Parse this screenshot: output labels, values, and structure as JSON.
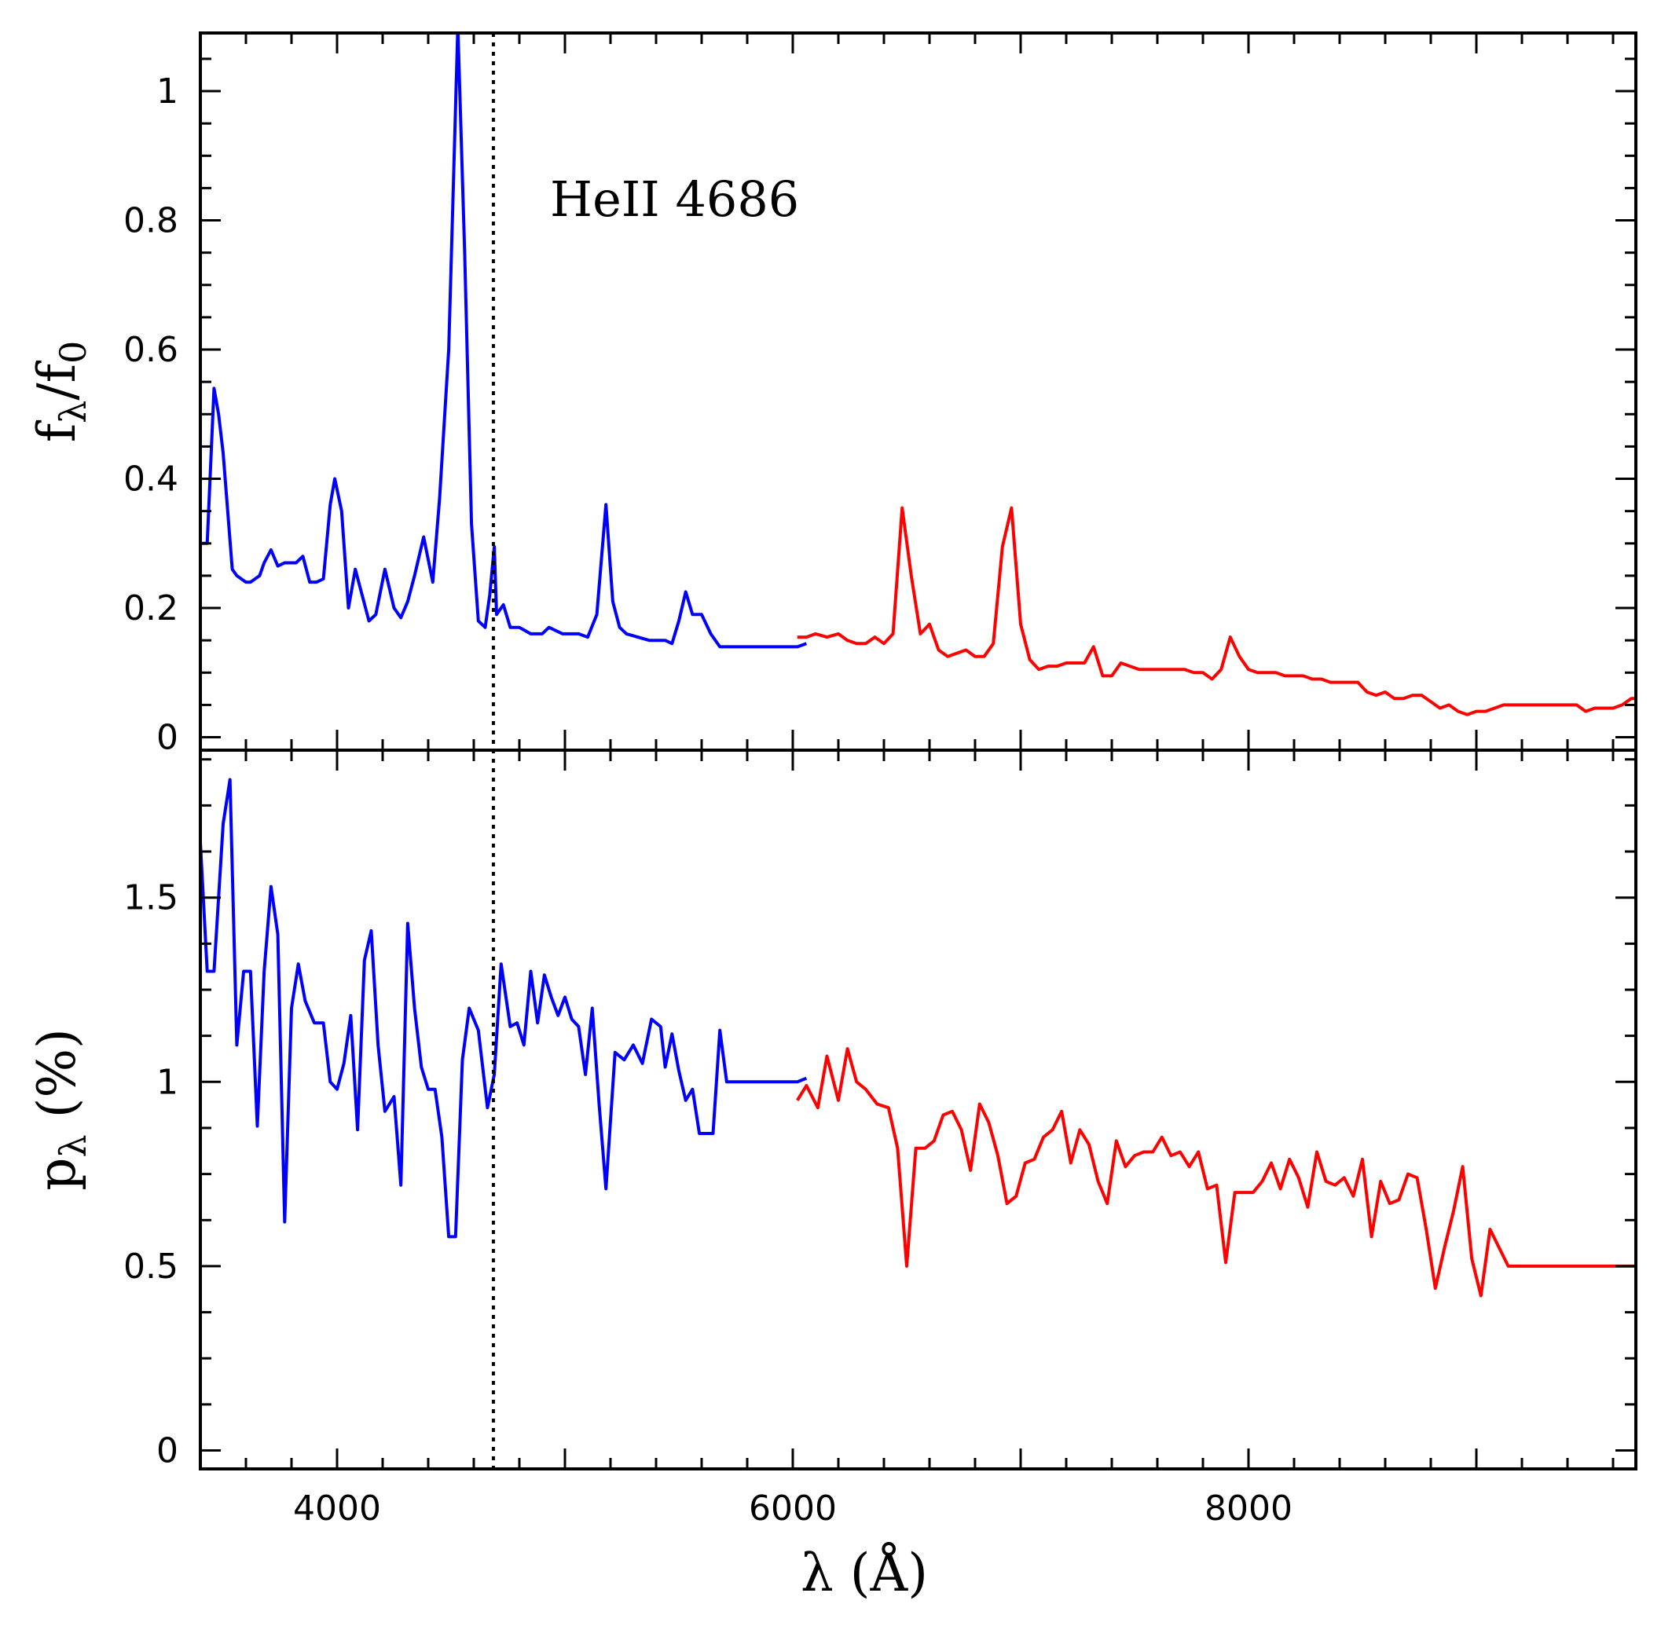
{
  "chart_data": {
    "type": "line",
    "xlabel": "λ (Å)",
    "xlim": [
      3400,
      9700
    ],
    "x_ticks": [
      4000,
      6000,
      8000
    ],
    "x_tick_labels": [
      "4000",
      "6000",
      "8000"
    ],
    "annotation": "HeII 4686",
    "marker_line": {
      "x": 4686
    },
    "panels": [
      {
        "name": "flux",
        "ylabel_main": "f",
        "ylabel_sub": "λ",
        "ylabel_rest": "/f",
        "ylabel_rest_sub": "0",
        "ylim": [
          -0.02,
          1.09
        ],
        "y_ticks": [
          0,
          0.2,
          0.4,
          0.6,
          0.8,
          1
        ],
        "y_tick_labels": [
          "0",
          "0.2",
          "0.4",
          "0.6",
          "0.8",
          "1"
        ],
        "series": [
          {
            "name": "blue",
            "color": "#0000ff",
            "x": [
              3400,
              3430,
              3460,
              3480,
              3500,
              3540,
              3560,
              3600,
              3620,
              3640,
              3660,
              3680,
              3710,
              3740,
              3770,
              3800,
              3820,
              3850,
              3880,
              3910,
              3940,
              3970,
              3990,
              4020,
              4050,
              4080,
              4110,
              4140,
              4170,
              4210,
              4250,
              4280,
              4310,
              4340,
              4380,
              4420,
              4450,
              4490,
              4530,
              4560,
              4590,
              4620,
              4650,
              4670,
              4690,
              4700,
              4730,
              4760,
              4800,
              4850,
              4880,
              4900,
              4930,
              4960,
              4990,
              5020,
              5060,
              5100,
              5140,
              5180,
              5210,
              5240,
              5270,
              5320,
              5370,
              5410,
              5440,
              5470,
              5500,
              5530,
              5560,
              5600,
              5640,
              5680,
              5720,
              5760,
              5800,
              5830,
              5860,
              5890,
              5940,
              5980,
              6020,
              6060
            ],
            "y": [
              0.3,
              0.3,
              0.54,
              0.5,
              0.44,
              0.26,
              0.25,
              0.24,
              0.24,
              0.245,
              0.25,
              0.27,
              0.29,
              0.265,
              0.27,
              0.27,
              0.27,
              0.28,
              0.24,
              0.24,
              0.245,
              0.36,
              0.4,
              0.35,
              0.2,
              0.26,
              0.22,
              0.18,
              0.19,
              0.26,
              0.2,
              0.185,
              0.21,
              0.25,
              0.31,
              0.24,
              0.37,
              0.6,
              1.1,
              0.75,
              0.33,
              0.18,
              0.17,
              0.22,
              0.295,
              0.19,
              0.205,
              0.17,
              0.17,
              0.16,
              0.16,
              0.16,
              0.17,
              0.165,
              0.16,
              0.16,
              0.16,
              0.155,
              0.19,
              0.36,
              0.21,
              0.17,
              0.16,
              0.155,
              0.15,
              0.15,
              0.15,
              0.145,
              0.18,
              0.225,
              0.19,
              0.19,
              0.16,
              0.14,
              0.14,
              0.14,
              0.14,
              0.14,
              0.14,
              0.14,
              0.14,
              0.14,
              0.14,
              0.145
            ]
          },
          {
            "name": "red",
            "color": "#ff0000",
            "x": [
              6020,
              6060,
              6100,
              6150,
              6200,
              6240,
              6280,
              6320,
              6360,
              6400,
              6440,
              6480,
              6520,
              6560,
              6600,
              6640,
              6680,
              6720,
              6760,
              6800,
              6840,
              6880,
              6920,
              6960,
              7000,
              7040,
              7080,
              7120,
              7160,
              7200,
              7240,
              7280,
              7320,
              7360,
              7400,
              7440,
              7480,
              7520,
              7560,
              7600,
              7640,
              7680,
              7720,
              7760,
              7800,
              7840,
              7880,
              7920,
              7960,
              8000,
              8040,
              8080,
              8120,
              8160,
              8200,
              8240,
              8280,
              8320,
              8360,
              8400,
              8440,
              8480,
              8520,
              8560,
              8600,
              8640,
              8680,
              8720,
              8760,
              8800,
              8840,
              8880,
              8920,
              8960,
              9000,
              9040,
              9080,
              9120,
              9160,
              9200,
              9240,
              9280,
              9320,
              9360,
              9400,
              9440,
              9480,
              9520,
              9560,
              9600,
              9640,
              9680,
              9700
            ],
            "y": [
              0.155,
              0.155,
              0.16,
              0.155,
              0.16,
              0.15,
              0.145,
              0.145,
              0.155,
              0.145,
              0.16,
              0.355,
              0.25,
              0.16,
              0.175,
              0.135,
              0.125,
              0.13,
              0.135,
              0.125,
              0.125,
              0.145,
              0.295,
              0.355,
              0.175,
              0.12,
              0.105,
              0.11,
              0.11,
              0.115,
              0.115,
              0.115,
              0.14,
              0.095,
              0.095,
              0.115,
              0.11,
              0.105,
              0.105,
              0.105,
              0.105,
              0.105,
              0.105,
              0.1,
              0.1,
              0.09,
              0.105,
              0.155,
              0.125,
              0.105,
              0.1,
              0.1,
              0.1,
              0.095,
              0.095,
              0.095,
              0.09,
              0.09,
              0.085,
              0.085,
              0.085,
              0.085,
              0.07,
              0.065,
              0.07,
              0.06,
              0.06,
              0.065,
              0.065,
              0.055,
              0.045,
              0.05,
              0.04,
              0.035,
              0.04,
              0.04,
              0.045,
              0.05,
              0.05,
              0.05,
              0.05,
              0.05,
              0.05,
              0.05,
              0.05,
              0.05,
              0.04,
              0.045,
              0.045,
              0.045,
              0.05,
              0.06,
              0.06
            ]
          }
        ]
      },
      {
        "name": "polarization",
        "ylabel_main": "p",
        "ylabel_sub": "λ",
        "ylabel_rest": " (%)",
        "ylabel_rest_sub": "",
        "ylim": [
          -0.05,
          1.9
        ],
        "y_ticks": [
          0,
          0.5,
          1,
          1.5
        ],
        "y_tick_labels": [
          "0",
          "0.5",
          "1",
          "1.5"
        ],
        "series": [
          {
            "name": "blue",
            "color": "#0000ff",
            "x": [
              3400,
              3430,
              3460,
              3500,
              3530,
              3560,
              3590,
              3620,
              3650,
              3680,
              3710,
              3740,
              3770,
              3800,
              3830,
              3860,
              3900,
              3940,
              3970,
              4000,
              4030,
              4060,
              4090,
              4120,
              4150,
              4180,
              4210,
              4250,
              4280,
              4310,
              4340,
              4370,
              4400,
              4430,
              4460,
              4490,
              4520,
              4550,
              4580,
              4620,
              4660,
              4690,
              4720,
              4760,
              4790,
              4820,
              4850,
              4880,
              4910,
              4940,
              4970,
              5000,
              5030,
              5060,
              5090,
              5120,
              5150,
              5180,
              5220,
              5260,
              5300,
              5340,
              5380,
              5420,
              5440,
              5470,
              5500,
              5530,
              5560,
              5590,
              5620,
              5650,
              5680,
              5710,
              5740,
              5770,
              5800,
              5830,
              5860,
              5890,
              5920,
              5950,
              5980,
              6020,
              6060
            ],
            "y": [
              1.65,
              1.3,
              1.3,
              1.7,
              1.82,
              1.1,
              1.3,
              1.3,
              0.88,
              1.3,
              1.53,
              1.4,
              0.62,
              1.2,
              1.32,
              1.22,
              1.16,
              1.16,
              1.0,
              0.98,
              1.05,
              1.18,
              0.87,
              1.33,
              1.41,
              1.1,
              0.92,
              0.96,
              0.72,
              1.43,
              1.2,
              1.04,
              0.98,
              0.98,
              0.85,
              0.58,
              0.58,
              1.06,
              1.2,
              1.14,
              0.93,
              1.02,
              1.32,
              1.15,
              1.16,
              1.1,
              1.3,
              1.16,
              1.29,
              1.23,
              1.18,
              1.23,
              1.17,
              1.15,
              1.02,
              1.2,
              0.94,
              0.71,
              1.08,
              1.06,
              1.1,
              1.05,
              1.17,
              1.15,
              1.04,
              1.13,
              1.03,
              0.95,
              0.98,
              0.86,
              0.86,
              0.86,
              1.14,
              1.0,
              1.0,
              1.0,
              1.0,
              1.0,
              1.0,
              1.0,
              1.0,
              1.0,
              1.0,
              1.0,
              1.01
            ]
          },
          {
            "name": "red",
            "color": "#ff0000",
            "x": [
              6020,
              6060,
              6110,
              6150,
              6200,
              6240,
              6280,
              6320,
              6370,
              6420,
              6460,
              6500,
              6540,
              6580,
              6620,
              6660,
              6700,
              6740,
              6780,
              6820,
              6860,
              6900,
              6940,
              6980,
              7020,
              7060,
              7100,
              7140,
              7180,
              7220,
              7260,
              7300,
              7340,
              7380,
              7420,
              7460,
              7500,
              7540,
              7580,
              7620,
              7660,
              7700,
              7740,
              7780,
              7820,
              7860,
              7900,
              7940,
              7980,
              8020,
              8060,
              8100,
              8140,
              8180,
              8220,
              8260,
              8300,
              8340,
              8380,
              8420,
              8460,
              8500,
              8540,
              8580,
              8620,
              8660,
              8700,
              8740,
              8780,
              8820,
              8860,
              8900,
              8940,
              8980,
              9020,
              9060,
              9100,
              9140,
              9180,
              9220,
              9260,
              9300,
              9340,
              9380,
              9420,
              9460,
              9500,
              9540,
              9580,
              9620,
              9660,
              9700
            ],
            "y": [
              0.95,
              0.99,
              0.93,
              1.07,
              0.95,
              1.09,
              1.0,
              0.98,
              0.94,
              0.93,
              0.82,
              0.5,
              0.82,
              0.82,
              0.84,
              0.91,
              0.92,
              0.87,
              0.76,
              0.94,
              0.89,
              0.8,
              0.67,
              0.69,
              0.78,
              0.79,
              0.85,
              0.87,
              0.92,
              0.78,
              0.87,
              0.83,
              0.73,
              0.67,
              0.84,
              0.77,
              0.8,
              0.81,
              0.81,
              0.85,
              0.8,
              0.81,
              0.77,
              0.81,
              0.71,
              0.72,
              0.51,
              0.7,
              0.7,
              0.7,
              0.73,
              0.78,
              0.71,
              0.79,
              0.74,
              0.66,
              0.81,
              0.73,
              0.72,
              0.74,
              0.69,
              0.79,
              0.58,
              0.73,
              0.67,
              0.68,
              0.75,
              0.74,
              0.6,
              0.44,
              0.55,
              0.65,
              0.77,
              0.52,
              0.42,
              0.6,
              0.55,
              0.5,
              0.5,
              0.5,
              0.5,
              0.5,
              0.5,
              0.5,
              0.5,
              0.5,
              0.5,
              0.5,
              0.5,
              0.5,
              0.5,
              0.5
            ]
          }
        ]
      }
    ]
  }
}
